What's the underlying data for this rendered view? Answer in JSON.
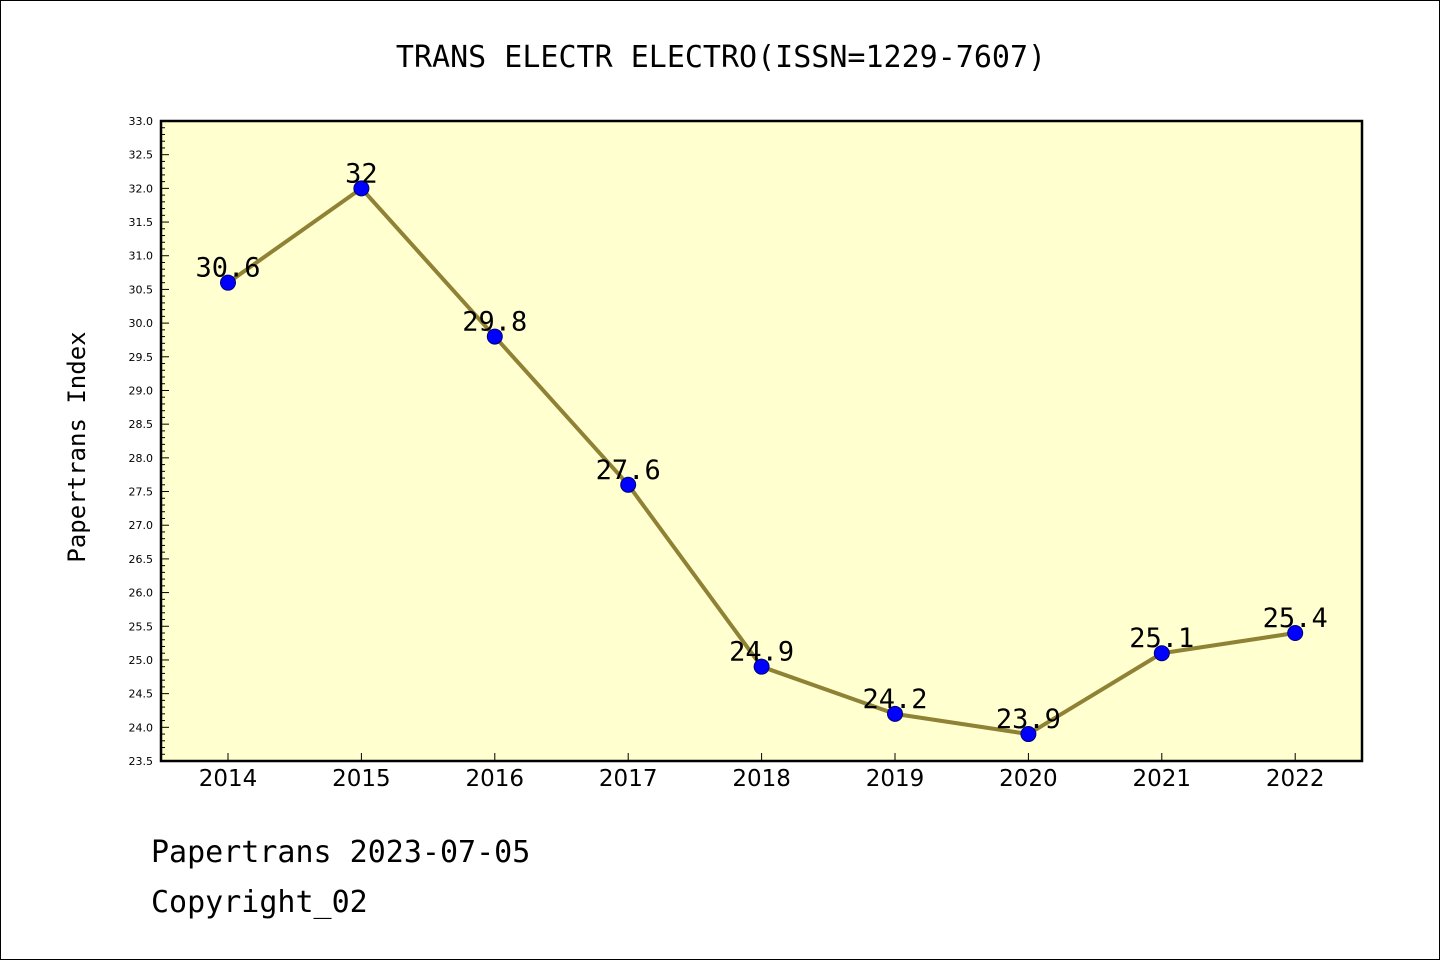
{
  "chart_data": {
    "type": "line",
    "title": "TRANS ELECTR ELECTRO(ISSN=1229-7607)",
    "xlabel": "",
    "ylabel": "Papertrans Index",
    "categories": [
      "2014",
      "2015",
      "2016",
      "2017",
      "2018",
      "2019",
      "2020",
      "2021",
      "2022"
    ],
    "series": [
      {
        "values": [
          30.6,
          32,
          29.8,
          27.6,
          24.9,
          24.2,
          23.9,
          25.1,
          25.4
        ],
        "data_labels": [
          "30.6",
          "32",
          "29.8",
          "27.6",
          "24.9",
          "24.2",
          "23.9",
          "25.1",
          "25.4"
        ]
      }
    ],
    "ylim": [
      23.5,
      33.0
    ],
    "y_major_step": 0.5,
    "y_tick_labels": [
      "23.5",
      "24.0",
      "24.5",
      "25.0",
      "25.5",
      "26.0",
      "26.5",
      "27.0",
      "27.5",
      "28.0",
      "28.5",
      "29.0",
      "29.5",
      "30.0",
      "30.5",
      "31.0",
      "31.5",
      "32.0",
      "32.5",
      "33.0"
    ],
    "grid": false,
    "legend": "none",
    "colors": {
      "plot_background": "#ffffd0",
      "line": "#8f8235",
      "marker_fill": "#0000ff",
      "marker_edge": "#00007a"
    }
  },
  "footer": {
    "line1": "Papertrans 2023-07-05",
    "line2": "Copyright_02"
  }
}
